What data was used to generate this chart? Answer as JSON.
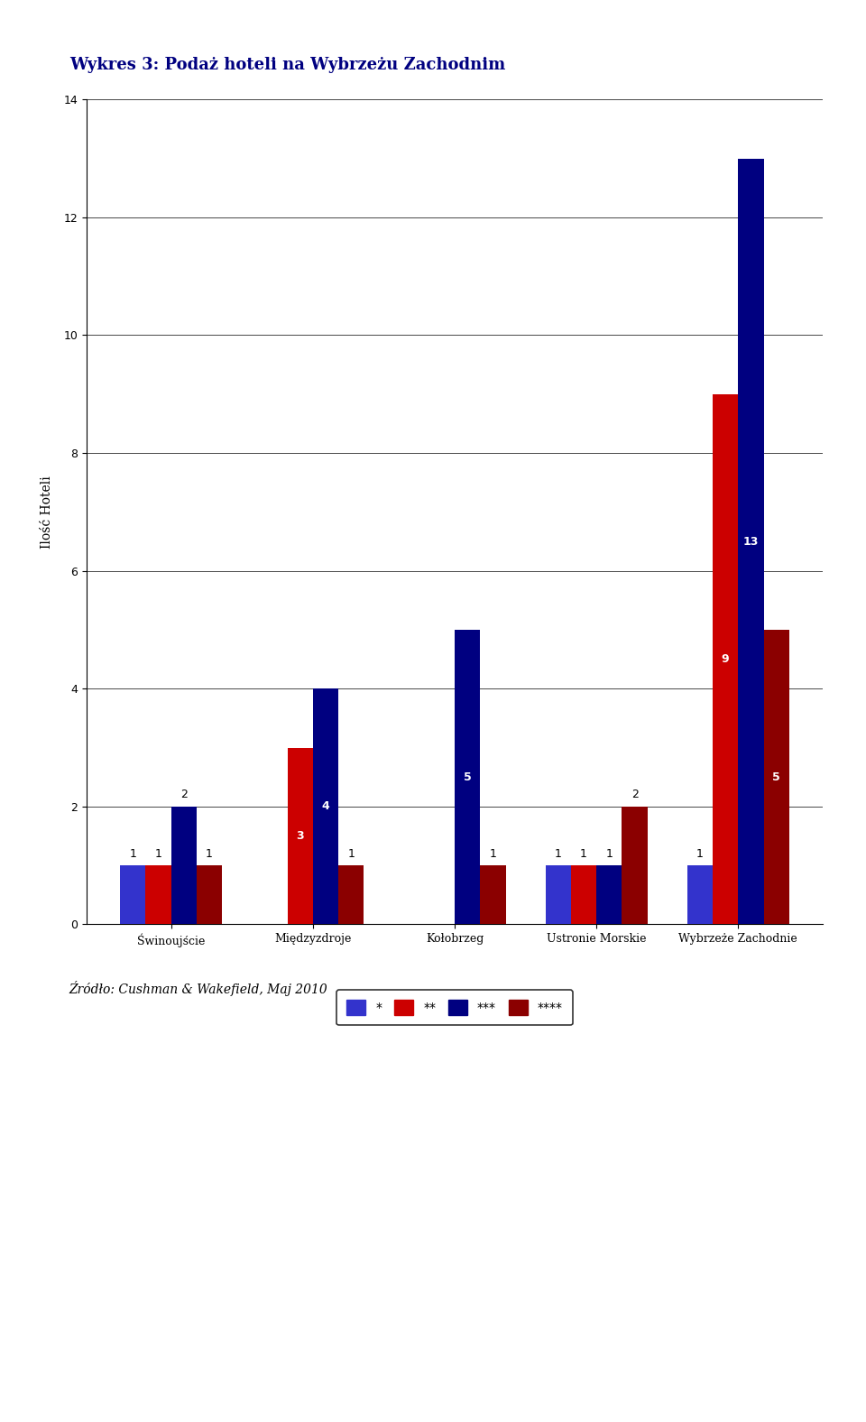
{
  "title": "Wykres 3: Podaż hoteli na Wybrzeżu Zachodnim",
  "ylabel": "Ilość Hoteli",
  "categories": [
    "Świnoujście",
    "Międzyzdroje",
    "Kołobrzeg",
    "Ustronie Morskie",
    "Wybrzeże Zachodnie"
  ],
  "series": {
    "*": [
      1,
      0,
      0,
      1,
      1
    ],
    "**": [
      1,
      3,
      0,
      1,
      9
    ],
    "***": [
      2,
      4,
      5,
      1,
      13
    ],
    "****": [
      1,
      1,
      1,
      2,
      5
    ]
  },
  "colors": {
    "*": "#3333CC",
    "**": "#CC0000",
    "***": "#000080",
    "****": "#8B0000"
  },
  "ylim": [
    0,
    14
  ],
  "yticks": [
    0,
    2,
    4,
    6,
    8,
    10,
    12,
    14
  ],
  "source": "Źródło: Cushman & Wakefield, Maj 2010",
  "title_color": "#000080",
  "bar_width": 0.18,
  "label_fontsize": 9,
  "title_fontsize": 13,
  "axis_label_fontsize": 10,
  "tick_fontsize": 9,
  "source_fontsize": 10
}
